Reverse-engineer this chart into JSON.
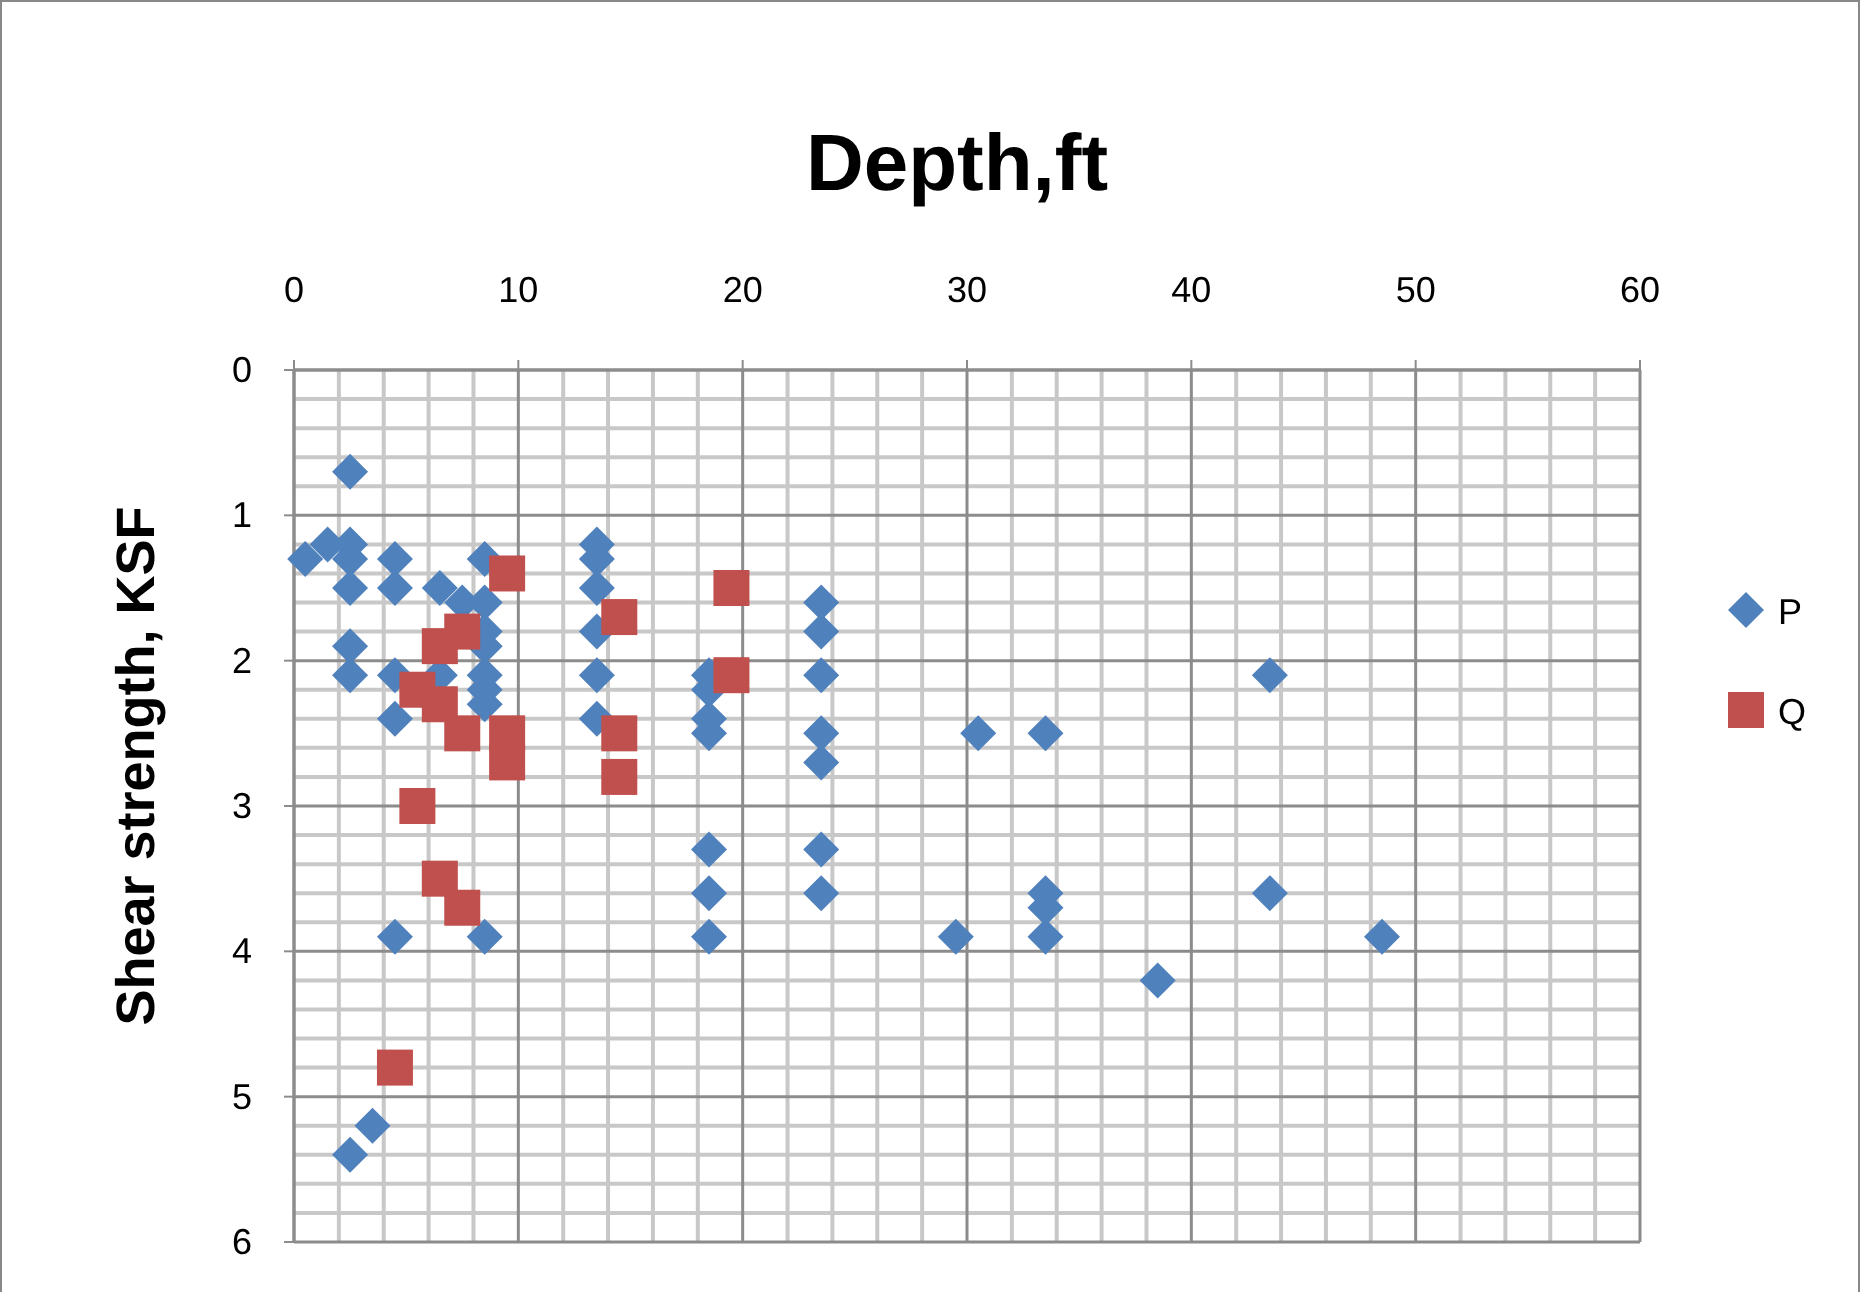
{
  "chart_data": {
    "type": "scatter",
    "title": "Depth,ft",
    "ylabel": "Shear strength, KSF",
    "xlim": [
      0,
      60
    ],
    "xticks": [
      0,
      10,
      20,
      30,
      40,
      50,
      60
    ],
    "ylim": [
      6,
      0
    ],
    "yticks": [
      0,
      1,
      2,
      3,
      4,
      5,
      6
    ],
    "grid": true,
    "legend": "right",
    "series": [
      {
        "name": "P",
        "color": "#4f81bd",
        "marker": "diamond",
        "x": [
          2.5,
          0.5,
          1.5,
          2.5,
          2.5,
          2.5,
          2.5,
          2.5,
          4.5,
          4.5,
          4.5,
          4.5,
          4.5,
          6.5,
          7.5,
          8.5,
          8.5,
          8.5,
          8.5,
          8.5,
          8.5,
          6.5,
          8.5,
          8.5,
          13.5,
          13.5,
          13.5,
          13.5,
          13.5,
          13.5,
          18.5,
          18.5,
          18.5,
          18.5,
          18.5,
          18.5,
          18.5,
          23.5,
          23.5,
          23.5,
          23.5,
          23.5,
          23.5,
          23.5,
          30.5,
          33.5,
          43.5,
          33.5,
          33.5,
          33.5,
          29.5,
          43.5,
          48.5,
          38.5,
          3.5,
          2.5
        ],
        "values": [
          0.7,
          1.3,
          1.2,
          1.2,
          1.3,
          1.5,
          1.9,
          2.1,
          1.3,
          1.5,
          2.1,
          2.4,
          3.9,
          1.5,
          1.6,
          1.3,
          1.6,
          1.8,
          1.9,
          2.1,
          2.2,
          2.1,
          2.3,
          3.9,
          1.2,
          1.3,
          1.5,
          1.8,
          2.1,
          2.4,
          2.1,
          2.2,
          2.4,
          2.5,
          3.3,
          3.6,
          3.9,
          1.6,
          1.8,
          2.1,
          2.5,
          2.7,
          3.3,
          3.6,
          2.5,
          2.5,
          2.1,
          3.6,
          3.7,
          3.9,
          3.9,
          3.6,
          3.9,
          4.2,
          5.2,
          5.4
        ]
      },
      {
        "name": "Q",
        "color": "#c0504d",
        "marker": "square",
        "x": [
          9.5,
          14.5,
          19.5,
          19.5,
          7.5,
          6.5,
          5.5,
          6.5,
          7.5,
          9.5,
          9.5,
          14.5,
          14.5,
          5.5,
          6.5,
          7.5,
          4.5
        ],
        "values": [
          1.4,
          1.7,
          1.5,
          2.1,
          1.8,
          1.9,
          2.2,
          2.3,
          2.5,
          2.5,
          2.7,
          2.5,
          2.8,
          3.0,
          3.5,
          3.7,
          4.8
        ]
      }
    ]
  }
}
